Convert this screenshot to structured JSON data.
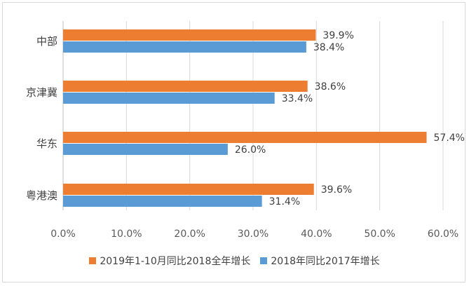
{
  "chart_data": {
    "type": "bar",
    "orientation": "horizontal",
    "categories": [
      "中部",
      "京津冀",
      "华东",
      "粤港澳"
    ],
    "series": [
      {
        "name": "2019年1-10月同比2018全年增长",
        "color": "#ED7D31",
        "values": [
          39.9,
          38.6,
          57.4,
          39.6
        ]
      },
      {
        "name": "2018年同比2017年增长",
        "color": "#5B9BD5",
        "values": [
          38.4,
          33.4,
          26.0,
          31.4
        ]
      }
    ],
    "xlim": [
      0,
      60
    ],
    "xticks": [
      0,
      10,
      20,
      30,
      40,
      50,
      60
    ],
    "tick_format": "percent_1dp",
    "grid": true,
    "legend_position": "bottom",
    "title": "",
    "xlabel": "",
    "ylabel": ""
  }
}
